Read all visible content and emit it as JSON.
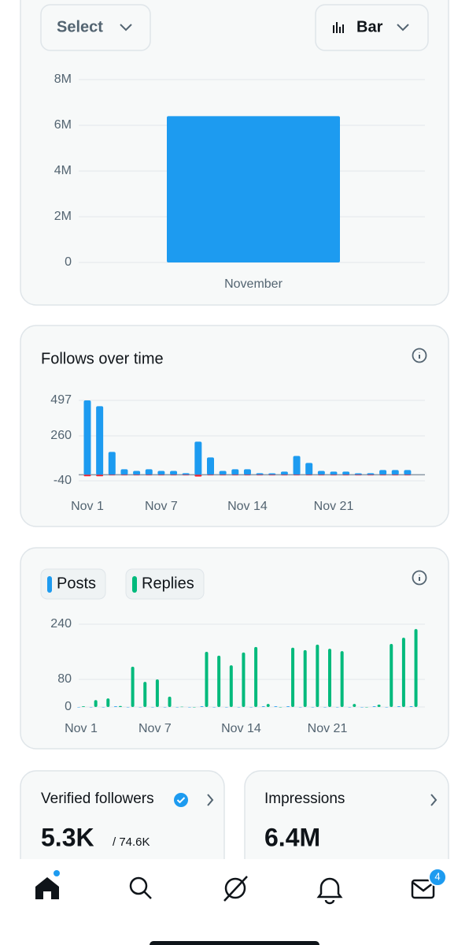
{
  "controls": {
    "select": "Select",
    "chart_type": "Bar"
  },
  "chart_data": [
    {
      "type": "bar",
      "categories": [
        "November"
      ],
      "values": [
        6400000
      ],
      "color": "#1d9bf0",
      "ylim": [
        0,
        8000000
      ],
      "yticks": [
        0,
        {
          "value": 2000000,
          "label": "2M"
        },
        {
          "value": 4000000,
          "label": "4M"
        },
        {
          "value": 6000000,
          "label": "6M"
        },
        {
          "value": 8000000,
          "label": "8M"
        }
      ],
      "grid": true
    },
    {
      "type": "bar",
      "title": "Follows over time",
      "categories": [
        "Nov 1",
        null,
        null,
        null,
        null,
        null,
        "Nov 7",
        null,
        null,
        null,
        null,
        null,
        null,
        "Nov 14",
        null,
        null,
        null,
        null,
        null,
        null,
        "Nov 21",
        null,
        null,
        null,
        null,
        null,
        null
      ],
      "series": [
        {
          "color": "#1d9bf0",
          "values": [
            497,
            458,
            153,
            37,
            26,
            37,
            26,
            26,
            11,
            221,
            116,
            26,
            37,
            37,
            11,
            10,
            21,
            126,
            79,
            26,
            21,
            21,
            10,
            11,
            32,
            32,
            32
          ]
        },
        {
          "color": "#f4212e",
          "values": [
            -10,
            -10,
            -4,
            -4,
            -4,
            -4,
            -4,
            -4,
            -4,
            -12,
            -4,
            -4,
            -4,
            -4,
            -4,
            -4,
            -4,
            -4,
            -4,
            -4,
            -4,
            -4,
            -4,
            -4,
            -4,
            -4,
            -4
          ]
        }
      ],
      "ylim": [
        -40,
        497
      ],
      "yticks": [
        -40,
        260,
        497
      ],
      "grid": true
    },
    {
      "type": "bar",
      "categories": [
        "Nov 1",
        null,
        null,
        null,
        null,
        null,
        "Nov 7",
        null,
        null,
        null,
        null,
        null,
        null,
        "Nov 14",
        null,
        null,
        null,
        null,
        null,
        null,
        "Nov 21",
        null,
        null,
        null,
        null,
        null,
        null,
        null
      ],
      "series": [
        {
          "name": "Posts",
          "color": "#1d9bf0",
          "values": [
            0,
            0,
            0,
            2,
            0,
            0,
            0,
            0,
            0,
            0,
            2,
            0,
            0,
            0,
            0,
            2,
            2,
            2,
            0,
            0,
            0,
            0,
            0,
            0,
            2,
            0,
            2,
            2
          ]
        },
        {
          "name": "Replies",
          "color": "#00ba7c",
          "values": [
            2,
            20,
            25,
            3,
            117,
            73,
            80,
            30,
            1,
            0,
            160,
            149,
            121,
            158,
            174,
            9,
            0,
            172,
            165,
            181,
            169,
            162,
            9,
            0,
            7,
            183,
            201,
            226
          ]
        }
      ],
      "ylim": [
        0,
        240
      ],
      "yticks": [
        0,
        80,
        240
      ],
      "grid": true
    }
  ],
  "cards": [
    {
      "title": "Verified followers",
      "value": "5.3K",
      "total": "/ 74.6K"
    },
    {
      "title": "Impressions",
      "value": "6.4M"
    }
  ],
  "nav": {
    "badge": "4"
  }
}
